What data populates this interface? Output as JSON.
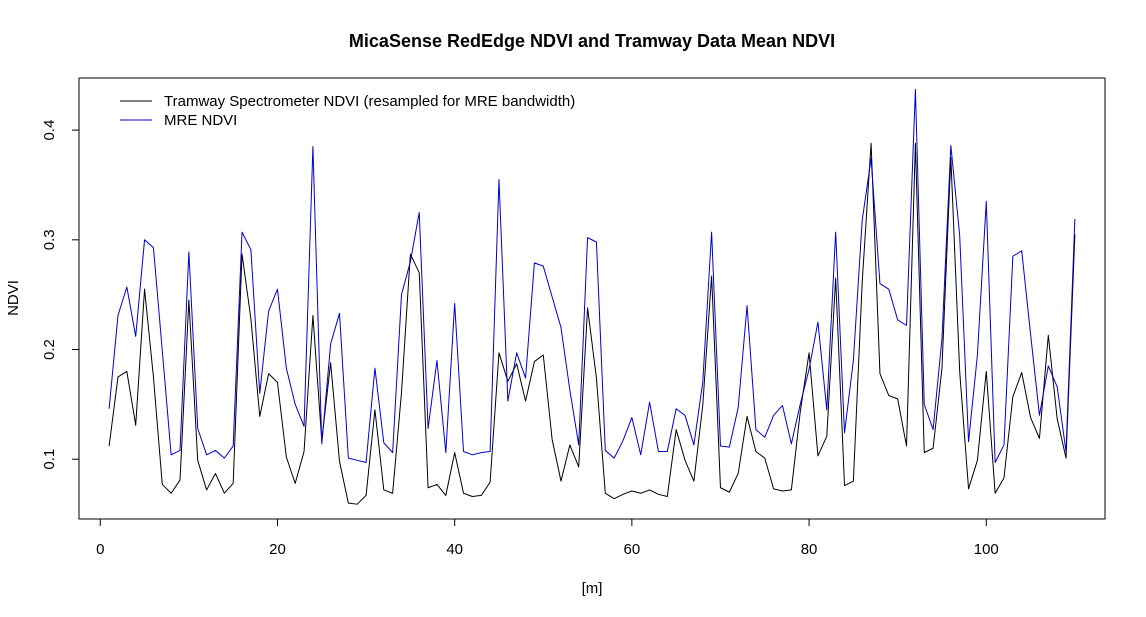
{
  "chart_data": {
    "type": "line",
    "title": "MicaSense RedEdge NDVI and Tramway Data Mean NDVI",
    "xlabel": "[m]",
    "ylabel": "NDVI",
    "xlim": [
      -2.4,
      113.4
    ],
    "ylim": [
      0.0455,
      0.4475
    ],
    "xticks": [
      0,
      20,
      40,
      60,
      80,
      100
    ],
    "yticks": [
      0.1,
      0.2,
      0.3,
      0.4
    ],
    "xtick_labels": [
      "0",
      "20",
      "40",
      "60",
      "80",
      "100"
    ],
    "ytick_labels": [
      "0.1",
      "0.2",
      "0.3",
      "0.4"
    ],
    "grid": false,
    "legend_position": "top-left",
    "x": [
      1,
      2,
      3,
      4,
      5,
      6,
      7,
      8,
      9,
      10,
      11,
      12,
      13,
      14,
      15,
      16,
      17,
      18,
      19,
      20,
      21,
      22,
      23,
      24,
      25,
      26,
      27,
      28,
      29,
      30,
      31,
      32,
      33,
      34,
      35,
      36,
      37,
      38,
      39,
      40,
      41,
      42,
      43,
      44,
      45,
      46,
      47,
      48,
      49,
      50,
      51,
      52,
      53,
      54,
      55,
      56,
      57,
      58,
      59,
      60,
      61,
      62,
      63,
      64,
      65,
      66,
      67,
      68,
      69,
      70,
      71,
      72,
      73,
      74,
      75,
      76,
      77,
      78,
      79,
      80,
      81,
      82,
      83,
      84,
      85,
      86,
      87,
      88,
      89,
      90,
      91,
      92,
      93,
      94,
      95,
      96,
      97,
      98,
      99,
      100,
      101,
      102,
      103,
      104,
      105,
      106,
      107,
      108,
      109,
      110
    ],
    "series": [
      {
        "name": "Tramway Spectrometer NDVI (resampled for MRE bandwidth)",
        "color": "#000000",
        "values": [
          0.112,
          0.175,
          0.18,
          0.131,
          0.255,
          0.175,
          0.077,
          0.069,
          0.081,
          0.245,
          0.099,
          0.072,
          0.087,
          0.069,
          0.078,
          0.287,
          0.228,
          0.139,
          0.178,
          0.17,
          0.102,
          0.078,
          0.107,
          0.231,
          0.117,
          0.188,
          0.098,
          0.06,
          0.059,
          0.067,
          0.145,
          0.072,
          0.069,
          0.161,
          0.287,
          0.27,
          0.074,
          0.077,
          0.067,
          0.106,
          0.069,
          0.066,
          0.067,
          0.079,
          0.197,
          0.171,
          0.187,
          0.153,
          0.189,
          0.195,
          0.118,
          0.08,
          0.113,
          0.093,
          0.238,
          0.174,
          0.069,
          0.064,
          0.068,
          0.071,
          0.069,
          0.072,
          0.068,
          0.066,
          0.127,
          0.099,
          0.08,
          0.149,
          0.267,
          0.074,
          0.07,
          0.087,
          0.139,
          0.107,
          0.101,
          0.073,
          0.071,
          0.072,
          0.143,
          0.197,
          0.103,
          0.121,
          0.265,
          0.076,
          0.08,
          0.262,
          0.388,
          0.178,
          0.158,
          0.155,
          0.112,
          0.388,
          0.106,
          0.11,
          0.183,
          0.375,
          0.18,
          0.073,
          0.099,
          0.18,
          0.069,
          0.083,
          0.157,
          0.179,
          0.138,
          0.119,
          0.213,
          0.137,
          0.101,
          0.305
        ]
      },
      {
        "name": "MRE NDVI",
        "color": "#0000cc",
        "values": [
          0.146,
          0.231,
          0.257,
          0.212,
          0.3,
          0.293,
          0.199,
          0.104,
          0.108,
          0.289,
          0.128,
          0.104,
          0.108,
          0.101,
          0.112,
          0.307,
          0.291,
          0.16,
          0.235,
          0.255,
          0.183,
          0.15,
          0.13,
          0.385,
          0.114,
          0.205,
          0.233,
          0.101,
          0.099,
          0.097,
          0.183,
          0.115,
          0.106,
          0.25,
          0.28,
          0.325,
          0.128,
          0.19,
          0.106,
          0.242,
          0.107,
          0.104,
          0.106,
          0.107,
          0.355,
          0.153,
          0.197,
          0.174,
          0.279,
          0.276,
          0.248,
          0.22,
          0.163,
          0.113,
          0.302,
          0.298,
          0.108,
          0.101,
          0.117,
          0.138,
          0.104,
          0.152,
          0.107,
          0.107,
          0.146,
          0.14,
          0.113,
          0.17,
          0.307,
          0.112,
          0.111,
          0.147,
          0.24,
          0.127,
          0.12,
          0.14,
          0.149,
          0.114,
          0.15,
          0.182,
          0.225,
          0.145,
          0.307,
          0.124,
          0.19,
          0.318,
          0.374,
          0.26,
          0.255,
          0.227,
          0.222,
          0.437,
          0.15,
          0.127,
          0.21,
          0.386,
          0.304,
          0.116,
          0.195,
          0.335,
          0.097,
          0.113,
          0.285,
          0.29,
          0.214,
          0.14,
          0.185,
          0.166,
          0.107,
          0.319
        ]
      }
    ]
  }
}
